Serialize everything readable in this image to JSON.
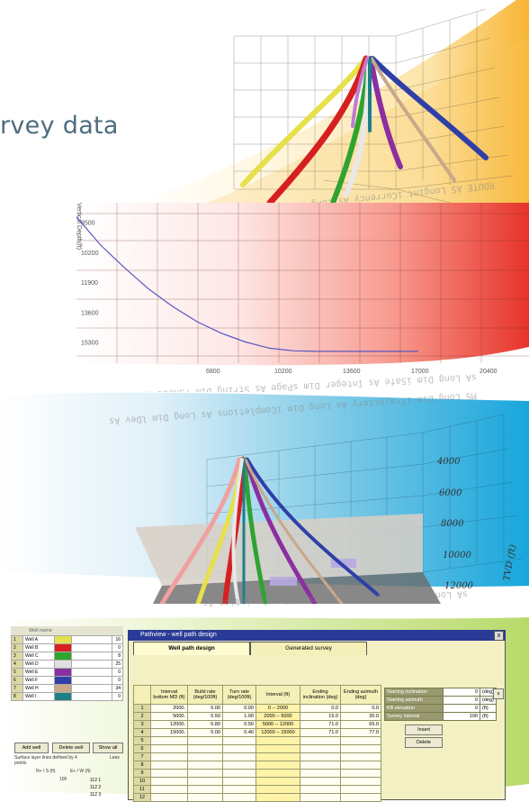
{
  "headline": "rvey data",
  "panel_top": {
    "mirror_text": "ROUTE AS Longint iCurrency As Long Dim iWaxList As Long Dim kWaxco"
  },
  "panel_vs": {
    "ylabel": "Vertical Depth(ft)",
    "y_ticks": [
      "8500",
      "10200",
      "11900",
      "13600",
      "15300"
    ],
    "x_ticks": [
      "6800",
      "10200",
      "13600",
      "17000",
      "20400"
    ],
    "mirror_text": "sA Long Dim iSafe As Integer Dim sPage As String Dim rSheet As Worksheet",
    "chart_data": {
      "type": "line",
      "xlabel": "",
      "ylabel": "Vertical Depth(ft)",
      "x_ticks": [
        6800,
        10200,
        13600,
        17000,
        20400
      ],
      "y_ticks": [
        8500,
        10200,
        11900,
        13600,
        15300
      ],
      "series": [
        {
          "x": [
            0,
            1200,
            2400,
            3600,
            4800,
            6000,
            7200,
            8400,
            9600,
            10800,
            12000,
            13600,
            15300,
            17000
          ],
          "y": [
            8200,
            9800,
            11100,
            12300,
            13300,
            14150,
            14800,
            15300,
            15650,
            15800,
            15830,
            15830,
            15830,
            15830
          ]
        }
      ]
    }
  },
  "panel_3d": {
    "tvd_label": "TVD (ft)",
    "depth_ticks": [
      "4000",
      "6000",
      "8000",
      "10000",
      "12000"
    ],
    "mirror_text": "MS Long Dim iTrajectory As Long Dim iCompletions As Long Dim lDev As"
  },
  "mirror_bottom": "sA Long Dim iTrajectory As Long Dim iDeviation As",
  "well_list": {
    "header": "Well name",
    "rows": [
      {
        "num": "1",
        "name": "Well A",
        "val": "16"
      },
      {
        "num": "2",
        "name": "Well B",
        "val": "0"
      },
      {
        "num": "3",
        "name": "Well C",
        "val": "8"
      },
      {
        "num": "4",
        "name": "Well D",
        "val": "25"
      },
      {
        "num": "5",
        "name": "Well E",
        "val": "0"
      },
      {
        "num": "6",
        "name": "Well F",
        "val": "0"
      },
      {
        "num": "7",
        "name": "Well H",
        "val": "34"
      },
      {
        "num": "8",
        "name": "Well I",
        "val": "0"
      }
    ],
    "add_label": "Add well",
    "delete_label": "Delete well",
    "show_label": "Show all",
    "surface_text": "Surface layer lines defined by 4 points",
    "leave_text": "Leav",
    "ns_header": "N+ / S (ft)",
    "ew_header": "E+ / W (ft)",
    "coord_rows": [
      {
        "num": "1",
        "ew": "112"
      },
      {
        "num": "2",
        "ew": "112"
      },
      {
        "num": "3",
        "ew": "112"
      }
    ],
    "small_val": "105"
  },
  "dialog": {
    "title": "Pathview - well path design",
    "close_label": "x",
    "tab1": "Well path design",
    "tab2": "Generated survey",
    "columns": [
      "Interval bottom MD (ft)",
      "Build rate (deg/100ft)",
      "Turn rate (deg/100ft)",
      "Interval (ft)",
      "Ending inclination (deg)",
      "Ending azimuth (deg)"
    ],
    "rows": [
      {
        "n": "1",
        "c": [
          "2000.",
          "0.00",
          "0.00",
          "0 -- 2000",
          "0.0",
          "0.0"
        ]
      },
      {
        "n": "2",
        "c": [
          "5000.",
          "0.50",
          "1.00",
          "2000 -- 5000",
          "15.0",
          "30.0"
        ]
      },
      {
        "n": "3",
        "c": [
          "12000.",
          "0.80",
          "0.50",
          "5000 -- 12000",
          "71.0",
          "65.0"
        ]
      },
      {
        "n": "4",
        "c": [
          "15000.",
          "0.00",
          "0.40",
          "12000 -- 15000",
          "71.0",
          "77.0"
        ]
      },
      {
        "n": "5",
        "c": [
          "",
          "",
          "",
          "",
          "",
          ""
        ]
      },
      {
        "n": "6",
        "c": [
          "",
          "",
          "",
          "",
          "",
          ""
        ]
      },
      {
        "n": "7",
        "c": [
          "",
          "",
          "",
          "",
          "",
          ""
        ]
      },
      {
        "n": "8",
        "c": [
          "",
          "",
          "",
          "",
          "",
          ""
        ]
      },
      {
        "n": "9",
        "c": [
          "",
          "",
          "",
          "",
          "",
          ""
        ]
      },
      {
        "n": "10",
        "c": [
          "",
          "",
          "",
          "",
          "",
          ""
        ]
      },
      {
        "n": "11",
        "c": [
          "",
          "",
          "",
          "",
          "",
          ""
        ]
      },
      {
        "n": "12",
        "c": [
          "",
          "",
          "",
          "",
          "",
          ""
        ]
      }
    ],
    "props": [
      {
        "k": "Starting inclination",
        "v": "0",
        "u": "(deg)"
      },
      {
        "k": "Starting azimuth",
        "v": "0",
        "u": "(deg)"
      },
      {
        "k": "KB elevation",
        "v": "0",
        "u": "(ft)"
      },
      {
        "k": "Survey interval",
        "v": "100",
        "u": "(ft)"
      }
    ],
    "insert_label": "Insert",
    "delete_label": "Delete",
    "side_label": "s"
  },
  "colors": {
    "wells": [
      "#e6e04a",
      "#d62020",
      "#2fa32f",
      "#e0e0e0",
      "#8b2fa0",
      "#2f3fa8",
      "#c9a88a",
      "#1e7f86",
      "#f0a0a0",
      "#c07bd0"
    ]
  }
}
